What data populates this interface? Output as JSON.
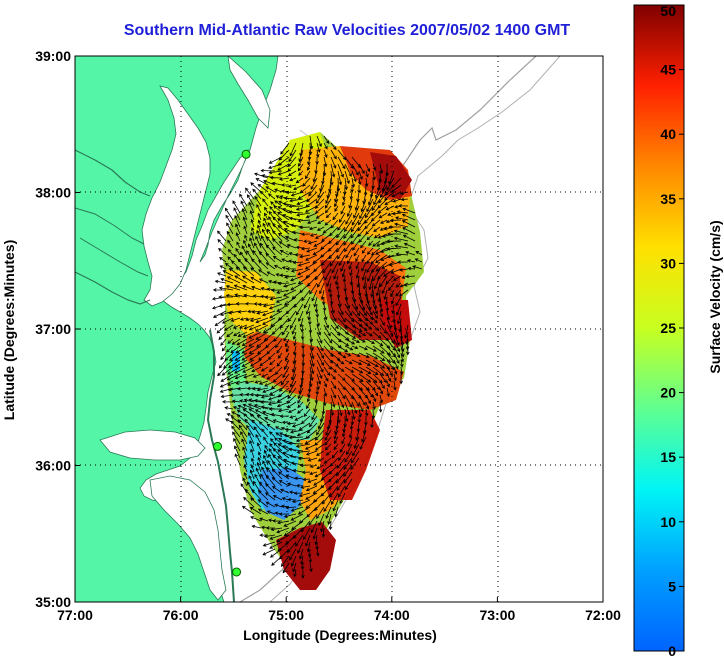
{
  "title": "Southern Mid-Atlantic Raw Velocities 2007/05/02 1400 GMT",
  "map": {
    "xlabel": "Longitude (Degrees:Minutes)",
    "ylabel": "Latitude (Degrees:Minutes)",
    "x_ticks": [
      "77:00",
      "76:00",
      "75:00",
      "74:00",
      "73:00",
      "72:00"
    ],
    "y_ticks": [
      "39:00",
      "38:00",
      "37:00",
      "36:00",
      "35:00"
    ],
    "grid": "dotted",
    "land_color": "#55f5a8",
    "water_color": "#ffffff",
    "bathymetry_color": "#a0a0a0"
  },
  "colorbar": {
    "label": "Surface Velocity (cm/s)",
    "min": 0,
    "max": 50,
    "ticks": [
      "50",
      "45",
      "40",
      "35",
      "30",
      "25",
      "20",
      "15",
      "10",
      "5",
      "0"
    ],
    "colormap": "jet"
  },
  "stations": [
    {
      "lon": -75.38,
      "lat": 38.28
    },
    {
      "lon": -75.65,
      "lat": 36.14
    },
    {
      "lon": -75.47,
      "lat": 35.22
    }
  ]
}
